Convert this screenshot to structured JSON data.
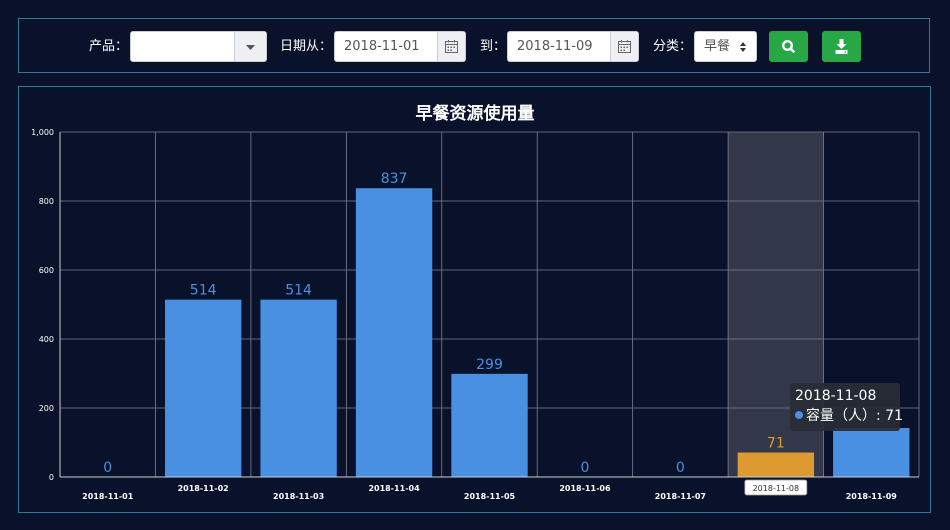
{
  "filters": {
    "product_label": "产品：",
    "product_value": "",
    "date_from_label": "日期从：",
    "date_from_value": "2018-11-01",
    "date_to_label": "到：",
    "date_to_value": "2018-11-09",
    "category_label": "分类：",
    "category_value": "早餐",
    "search_icon": "search-icon",
    "download_icon": "download-icon"
  },
  "colors": {
    "bar": "#4a90e2",
    "highlight_bar": "#dd9a30",
    "button": "#27a745",
    "background": "#0a122b"
  },
  "tooltip": {
    "date": "2018-11-08",
    "series_label": "容量（人）: 71"
  },
  "chart_data": {
    "type": "bar",
    "title": "早餐资源使用量",
    "xlabel": "",
    "ylabel": "",
    "ylim": [
      0,
      1000
    ],
    "y_ticks": [
      "0",
      "200",
      "400",
      "600",
      "800",
      "1,000"
    ],
    "categories": [
      "2018-11-01",
      "2018-11-02",
      "2018-11-03",
      "2018-11-04",
      "2018-11-05",
      "2018-11-06",
      "2018-11-07",
      "2018-11-08",
      "2018-11-09"
    ],
    "series": [
      {
        "name": "容量（人）",
        "values": [
          0,
          514,
          514,
          837,
          299,
          0,
          0,
          71,
          142
        ]
      }
    ],
    "data_labels": [
      "0",
      "514",
      "514",
      "837",
      "299",
      "0",
      "0",
      "71",
      ""
    ],
    "highlighted_category": "2018-11-08"
  }
}
